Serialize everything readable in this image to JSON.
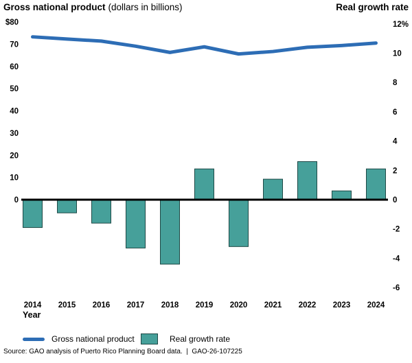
{
  "titles": {
    "left_bold": "Gross national product",
    "left_note": "(dollars in billions)",
    "right": "Real growth rate"
  },
  "chart_data": {
    "type": "combo-line-bar",
    "categories": [
      "2014",
      "2015",
      "2016",
      "2017",
      "2018",
      "2019",
      "2020",
      "2021",
      "2022",
      "2023",
      "2024"
    ],
    "series": [
      {
        "name": "Gross national product",
        "type": "line",
        "axis": "left",
        "unit": "dollars in billions",
        "color": "#2d6db5",
        "values": [
          73.3,
          72.3,
          71.4,
          69.1,
          66.3,
          68.8,
          65.6,
          66.7,
          68.6,
          69.4,
          70.5
        ]
      },
      {
        "name": "Real growth rate",
        "type": "bar",
        "axis": "right",
        "unit": "percent",
        "color": "#46a09a",
        "border_color": "#1d4845",
        "values": [
          -1.9,
          -0.9,
          -1.6,
          -3.3,
          -4.4,
          2.1,
          -3.2,
          1.4,
          2.6,
          0.6,
          2.1
        ]
      }
    ],
    "left_axis": {
      "title": "Gross national product (dollars in billions)",
      "ticks": [
        "$80",
        "70",
        "60",
        "50",
        "40",
        "30",
        "20",
        "10",
        "0"
      ],
      "tick_values": [
        80,
        70,
        60,
        50,
        40,
        30,
        20,
        10,
        0
      ],
      "range": [
        0,
        80
      ]
    },
    "right_axis": {
      "title": "Real growth rate",
      "ticks": [
        "12%",
        "10",
        "8",
        "6",
        "4",
        "2",
        "0",
        "-2",
        "-4",
        "-6"
      ],
      "tick_values": [
        12,
        10,
        8,
        6,
        4,
        2,
        0,
        -2,
        -4,
        -6
      ],
      "range": [
        -6,
        12
      ]
    },
    "xlabel": "Year",
    "grid": false,
    "zero_line_color": "#000000",
    "legend_position": "bottom"
  },
  "xaxis_title": "Year",
  "legend": {
    "items": [
      {
        "label": "Gross national product",
        "swatch": "line",
        "color": "#2d6db5"
      },
      {
        "label": "Real growth rate",
        "swatch": "box",
        "color": "#46a09a",
        "border": "#1d4845"
      }
    ]
  },
  "source": "Source: GAO analysis of Puerto Rico Planning Board data.  |  GAO-26-107225"
}
